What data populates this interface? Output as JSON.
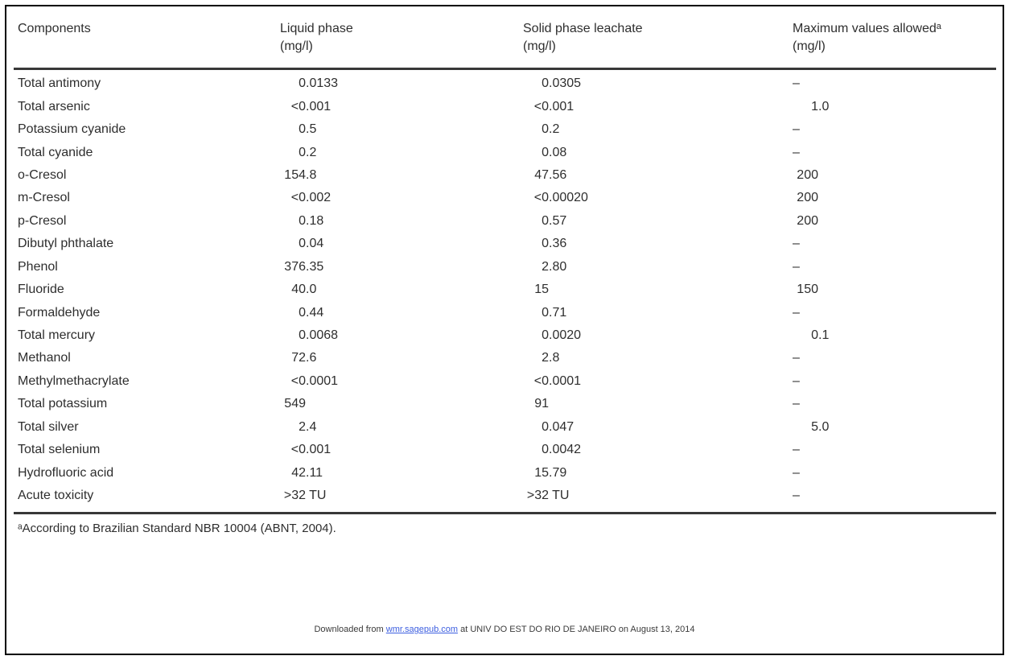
{
  "table": {
    "columns": [
      {
        "label": "Components",
        "unit": ""
      },
      {
        "label": "Liquid phase",
        "unit": "(mg/l)"
      },
      {
        "label": "Solid phase leachate",
        "unit": "(mg/l)"
      },
      {
        "label": "Maximum values allowedᵃ",
        "unit": "(mg/l)"
      }
    ],
    "rows": [
      {
        "component": "Total antimony",
        "liquid": "0.0133",
        "solid": "0.0305",
        "max": "–"
      },
      {
        "component": "Total arsenic",
        "liquid": "<0.001",
        "solid": "<0.001",
        "max": "1.0"
      },
      {
        "component": "Potassium cyanide",
        "liquid": "0.5",
        "solid": "0.2",
        "max": "–"
      },
      {
        "component": "Total cyanide",
        "liquid": "0.2",
        "solid": "0.08",
        "max": "–"
      },
      {
        "component": "o-Cresol",
        "liquid": "154.8",
        "solid": "47.56",
        "max": "200"
      },
      {
        "component": "m-Cresol",
        "liquid": "<0.002",
        "solid": "<0.00020",
        "max": "200"
      },
      {
        "component": "p-Cresol",
        "liquid": "0.18",
        "solid": "0.57",
        "max": "200"
      },
      {
        "component": "Dibutyl phthalate",
        "liquid": "0.04",
        "solid": "0.36",
        "max": "–"
      },
      {
        "component": "Phenol",
        "liquid": "376.35",
        "solid": "2.80",
        "max": "–"
      },
      {
        "component": "Fluoride",
        "liquid": "40.0",
        "solid": "15",
        "max": "150"
      },
      {
        "component": "Formaldehyde",
        "liquid": "0.44",
        "solid": "0.71",
        "max": "–"
      },
      {
        "component": "Total mercury",
        "liquid": "0.0068",
        "solid": "0.0020",
        "max": "0.1"
      },
      {
        "component": "Methanol",
        "liquid": "72.6",
        "solid": "2.8",
        "max": "–"
      },
      {
        "component": "Methylmethacrylate",
        "liquid": "<0.0001",
        "solid": "<0.0001",
        "max": "–"
      },
      {
        "component": "Total potassium",
        "liquid": "549",
        "solid": "91",
        "max": "–"
      },
      {
        "component": "Total silver",
        "liquid": "2.4",
        "solid": "0.047",
        "max": "5.0"
      },
      {
        "component": "Total selenium",
        "liquid": "<0.001",
        "solid": "0.0042",
        "max": "–"
      },
      {
        "component": "Hydrofluoric acid",
        "liquid": "42.11",
        "solid": "15.79",
        "max": "–"
      },
      {
        "component": "Acute toxicity",
        "liquid": ">32 TU",
        "solid": ">32 TU",
        "max": "–"
      }
    ],
    "footnote": "ᵃAccording to Brazilian Standard NBR 10004 (ABNT, 2004)."
  },
  "footer": {
    "prefix": "Downloaded from ",
    "link": "wmr.sagepub.com",
    "suffix": " at UNIV DO EST DO RIO DE JANEIRO on August 13, 2014"
  },
  "colors": {
    "text": "#2e2e2e",
    "border": "#000000",
    "rule": "#383838",
    "link_blue": "#3d5fe0"
  }
}
